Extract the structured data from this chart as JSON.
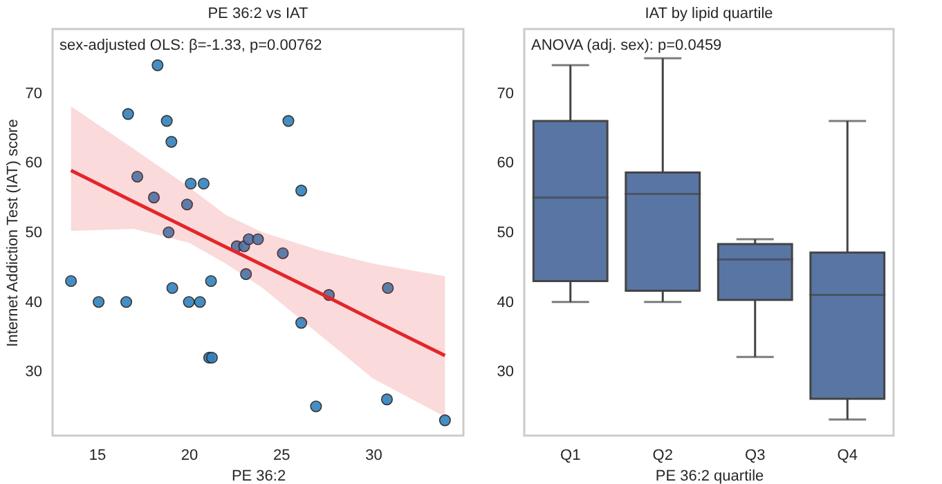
{
  "chart_data": [
    {
      "type": "scatter",
      "title": "PE 36:2 vs IAT",
      "xlabel": "PE 36:2",
      "ylabel": "Internet Addiction Test (IAT) score",
      "annotations": [
        "sex-adjusted OLS: β=-1.33, p=0.00762"
      ],
      "xlim": [
        12.6,
        34.9
      ],
      "xticks": [
        15,
        20,
        25,
        30
      ],
      "ylim": [
        20.8,
        79.2
      ],
      "yticks": [
        30,
        40,
        50,
        60,
        70
      ],
      "grid": false,
      "series": [
        {
          "type": "scatter",
          "color": "#3182bd",
          "marker": "circle",
          "x": [
            18.3,
            16.7,
            18.8,
            19.05,
            25.4,
            17.2,
            20.1,
            20.8,
            26.1,
            18.1,
            19.9,
            18.9,
            13.6,
            15.1,
            16.6,
            19.1,
            20.0,
            20.6,
            21.2,
            21.1,
            21.25,
            23.1,
            25.1,
            26.1,
            26.9,
            27.6,
            30.8,
            30.75,
            33.9,
            22.6,
            23.0,
            23.25,
            23.75
          ],
          "values": [
            74,
            67,
            66,
            63,
            66,
            58,
            57,
            57,
            56,
            55,
            54,
            50,
            43,
            40,
            40,
            42,
            40,
            40,
            43,
            32,
            32,
            44,
            47,
            37,
            25,
            41,
            42,
            26,
            23,
            48,
            48,
            49,
            49
          ]
        },
        {
          "type": "line",
          "color": "#e3262a",
          "line_style": "solid",
          "x": [
            13.6,
            17,
            20,
            22,
            24,
            27,
            30,
            33.9
          ],
          "values": [
            58.9,
            54.4,
            50.5,
            47.9,
            45.3,
            41.4,
            37.4,
            32.3
          ],
          "lower": [
            50.2,
            50.5,
            48.5,
            45.5,
            42,
            35.5,
            29,
            23.5
          ],
          "upper": [
            68.1,
            62,
            56.5,
            52.5,
            50,
            47.5,
            45.5,
            43.7
          ]
        }
      ]
    },
    {
      "type": "box",
      "title": "IAT by lipid quartile",
      "xlabel": "PE 36:2 quartile",
      "annotations": [
        "ANOVA (adj. sex): p=0.0459"
      ],
      "categories": [
        "Q1",
        "Q2",
        "Q3",
        "Q4"
      ],
      "ylim": [
        20.8,
        79.2
      ],
      "yticks": [
        30,
        40,
        50,
        60,
        70
      ],
      "grid": false,
      "series": [
        {
          "color": "#5875a4",
          "boxes": [
            {
              "low": 40,
              "q1": 43,
              "median": 55,
              "q3": 66,
              "high": 74
            },
            {
              "low": 40,
              "q1": 41.6,
              "median": 55.5,
              "q3": 58.6,
              "high": 75
            },
            {
              "low": 32.1,
              "q1": 40.3,
              "median": 46.1,
              "q3": 48.3,
              "high": 49
            },
            {
              "low": 23.1,
              "q1": 26.1,
              "median": 41,
              "q3": 47.1,
              "high": 66
            }
          ]
        }
      ]
    }
  ]
}
